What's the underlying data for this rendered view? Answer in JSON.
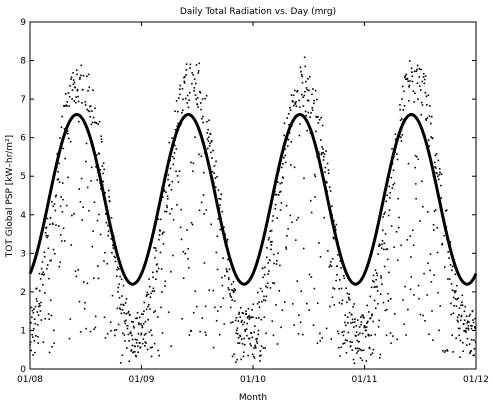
{
  "chart_data": {
    "type": "scatter",
    "title": "Daily Total Radiation vs. Day (mrg)",
    "xlabel": "Month",
    "ylabel": "TOT Global PSP [kW–hr/m²]",
    "ylim": [
      0,
      9
    ],
    "y_ticks": [
      0,
      1,
      2,
      3,
      4,
      5,
      6,
      7,
      8,
      9
    ],
    "x_ticks": [
      "01/08",
      "01/09",
      "01/10",
      "01/11",
      "01/12"
    ],
    "x_tick_years": [
      2008,
      2009,
      2010,
      2011,
      2012
    ],
    "grid": false,
    "series": [
      {
        "kind": "scatter",
        "description_values": "daily total radiation points (seasonal pattern)",
        "seasonal_min": 0.2,
        "seasonal_max": 8.8
      },
      {
        "kind": "line",
        "points": [
          [
            2008.0,
            2.25
          ],
          [
            2008.1,
            3.3
          ],
          [
            2008.2,
            4.9
          ],
          [
            2008.3,
            6.1
          ],
          [
            2008.42,
            6.6
          ],
          [
            2008.55,
            6.1
          ],
          [
            2008.68,
            4.6
          ],
          [
            2008.8,
            3.0
          ],
          [
            2008.92,
            2.2
          ],
          [
            2009.0,
            2.25
          ],
          [
            2009.1,
            3.3
          ],
          [
            2009.2,
            4.9
          ],
          [
            2009.3,
            6.1
          ],
          [
            2009.42,
            6.6
          ],
          [
            2009.55,
            6.1
          ],
          [
            2009.68,
            4.6
          ],
          [
            2009.8,
            3.0
          ],
          [
            2009.92,
            2.2
          ],
          [
            2010.0,
            2.25
          ],
          [
            2010.1,
            3.3
          ],
          [
            2010.2,
            4.9
          ],
          [
            2010.3,
            6.1
          ],
          [
            2010.42,
            6.6
          ],
          [
            2010.55,
            6.1
          ],
          [
            2010.68,
            4.6
          ],
          [
            2010.8,
            3.0
          ],
          [
            2010.92,
            2.2
          ],
          [
            2011.0,
            2.25
          ],
          [
            2011.1,
            3.3
          ],
          [
            2011.2,
            4.9
          ],
          [
            2011.3,
            6.1
          ],
          [
            2011.42,
            6.6
          ],
          [
            2011.55,
            6.1
          ],
          [
            2011.68,
            4.6
          ],
          [
            2011.8,
            3.0
          ],
          [
            2011.92,
            2.2
          ],
          [
            2012.0,
            2.25
          ]
        ]
      }
    ]
  }
}
